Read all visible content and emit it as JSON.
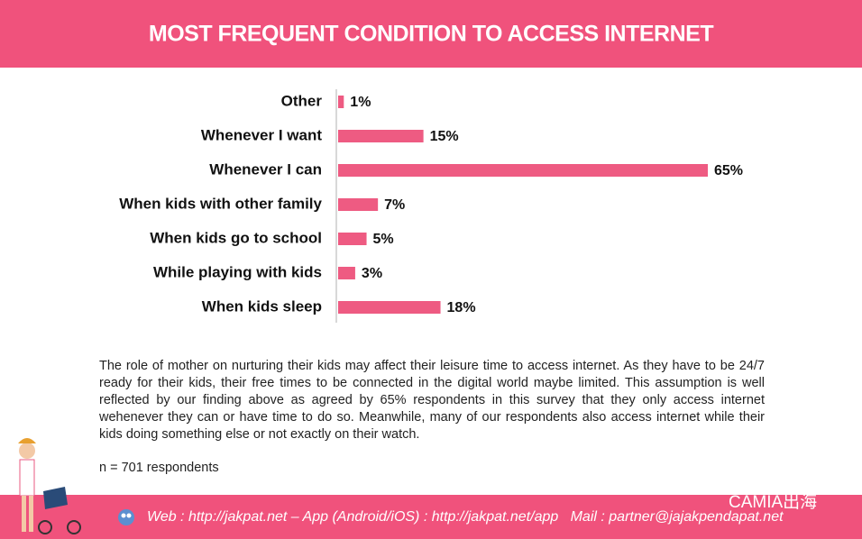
{
  "chart_data": {
    "type": "bar",
    "orientation": "horizontal",
    "title": "MOST FREQUENT CONDITION TO ACCESS INTERNET",
    "categories": [
      "Other",
      "Whenever I want",
      "Whenever I can",
      "When kids with other family",
      "When kids go to school",
      "While playing with kids",
      "When kids sleep"
    ],
    "values": [
      1,
      15,
      65,
      7,
      5,
      3,
      18
    ],
    "value_labels": [
      "1%",
      "15%",
      "65%",
      "7%",
      "5%",
      "3%",
      "18%"
    ],
    "color": "#ee5b82"
  },
  "notes": {
    "paragraph": "The role of mother on nurturing their kids may affect their leisure time to access internet. As they have to be 24/7 ready for their kids, their free times to be connected in the digital world maybe limited. This assumption is well reflected by our finding above as agreed by 65% respondents in this survey that they only access internet wehenever they can or have time to do so. Meanwhile, many of our respondents also access internet while their kids doing something else or not exactly on their watch.",
    "sample": "n = 701 respondents"
  },
  "footer": {
    "contact": "Web : http://jakpat.net – App (Android/iOS) : http://jakpat.net/app   Mail : partner@jajakpendapat.net",
    "watermark": "CAMIA出海"
  }
}
